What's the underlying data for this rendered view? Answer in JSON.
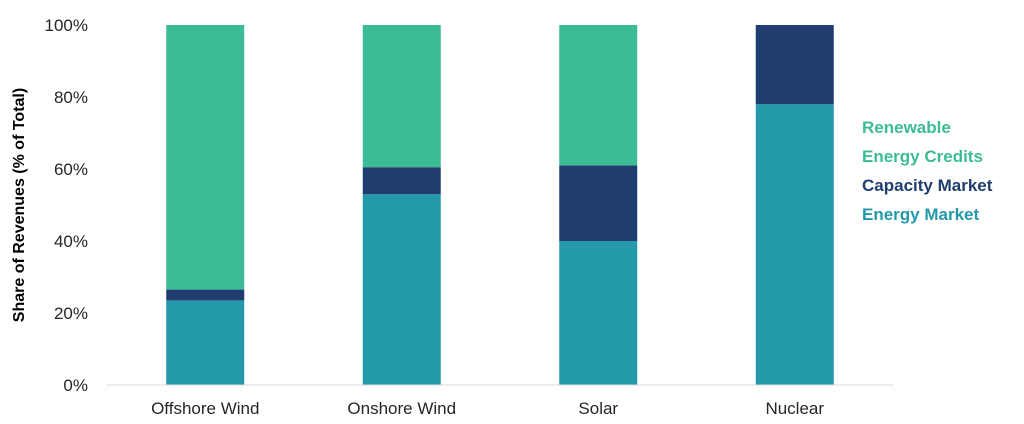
{
  "chart_data": {
    "type": "bar",
    "stacked": true,
    "title": "",
    "xlabel": "",
    "ylabel": "Share of Revenues (% of Total)",
    "ylim": [
      0,
      100
    ],
    "yticks": [
      "0%",
      "20%",
      "40%",
      "60%",
      "80%",
      "100%"
    ],
    "categories": [
      "Offshore Wind",
      "Onshore Wind",
      "Solar",
      "Nuclear"
    ],
    "series": [
      {
        "name": "Energy Market",
        "color": "#2499AA",
        "values": [
          23.5,
          53,
          40,
          78
        ]
      },
      {
        "name": "Capacity Market",
        "color": "#1F3D6E",
        "values": [
          3,
          7.5,
          21,
          22
        ]
      },
      {
        "name": "Renewable Energy Credits",
        "color": "#3BBC96",
        "values": [
          73.5,
          39.5,
          39,
          0
        ]
      }
    ],
    "legend": {
      "placement": "right",
      "lines": [
        {
          "text": "Renewable",
          "series": "Renewable Energy Credits",
          "color": "#3BBC96"
        },
        {
          "text": "Energy Credits",
          "series": "Renewable Energy Credits",
          "color": "#3BBC96"
        },
        {
          "text": "Capacity Market",
          "series": "Capacity Market",
          "color": "#1F3D6E"
        },
        {
          "text": "Energy Market",
          "series": "Energy Market",
          "color": "#2499AA"
        }
      ]
    },
    "grid": false
  }
}
